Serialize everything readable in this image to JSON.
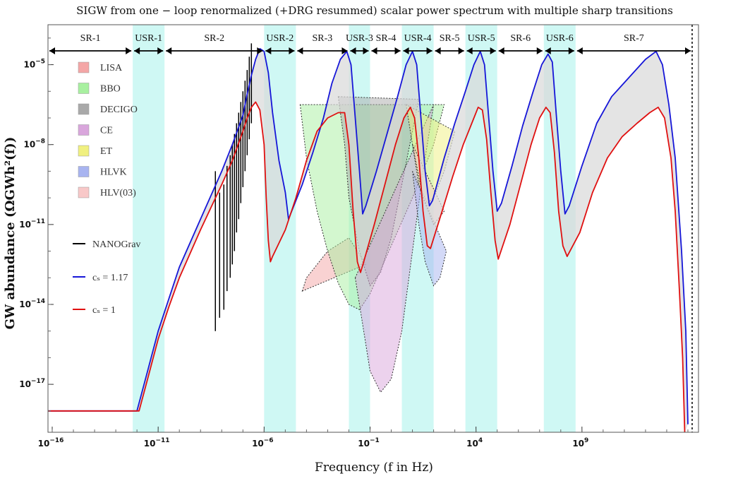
{
  "chart_data": {
    "type": "line",
    "title": "SIGW from one − loop renormalized (+DRG resummed) scalar power spectrum with multiple sharp transitions",
    "xlabel": "Frequency (f in Hz)",
    "ylabel": "GW abundance (ΩGWh²(f))",
    "xscale": "log10",
    "yscale": "log10",
    "xlim_log10": [
      -16.2,
      14.5
    ],
    "ylim_log10": [
      -18.8,
      -3.5
    ],
    "x_ticks": [
      {
        "log10": -16,
        "base": "10",
        "exp": "−16"
      },
      {
        "log10": -11,
        "base": "10",
        "exp": "−11"
      },
      {
        "log10": -6,
        "base": "10",
        "exp": "−6"
      },
      {
        "log10": -1,
        "base": "10",
        "exp": "−1"
      },
      {
        "log10": 4,
        "base": "10",
        "exp": "4"
      },
      {
        "log10": 9,
        "base": "10",
        "exp": "9"
      }
    ],
    "y_ticks": [
      {
        "log10": -5,
        "base": "10",
        "exp": "−5"
      },
      {
        "log10": -8,
        "base": "10",
        "exp": "−8"
      },
      {
        "log10": -11,
        "base": "10",
        "exp": "−11"
      },
      {
        "log10": -14,
        "base": "10",
        "exp": "−14"
      },
      {
        "log10": -17,
        "base": "10",
        "exp": "−17"
      }
    ],
    "regions": [
      {
        "label": "SR-1",
        "x0": -16.2,
        "x1": -12.2,
        "shaded": false
      },
      {
        "label": "USR-1",
        "x0": -12.2,
        "x1": -10.7,
        "shaded": true
      },
      {
        "label": "SR-2",
        "x0": -10.7,
        "x1": -6.0,
        "shaded": false
      },
      {
        "label": "USR-2",
        "x0": -6.0,
        "x1": -4.5,
        "shaded": true
      },
      {
        "label": "SR-3",
        "x0": -4.5,
        "x1": -2.0,
        "shaded": false
      },
      {
        "label": "USR-3",
        "x0": -2.0,
        "x1": -1.0,
        "shaded": true
      },
      {
        "label": "SR-4",
        "x0": -1.0,
        "x1": 0.5,
        "shaded": false
      },
      {
        "label": "USR-4",
        "x0": 0.5,
        "x1": 2.0,
        "shaded": true
      },
      {
        "label": "SR-5",
        "x0": 2.0,
        "x1": 3.5,
        "shaded": false
      },
      {
        "label": "USR-5",
        "x0": 3.5,
        "x1": 5.0,
        "shaded": true
      },
      {
        "label": "SR-6",
        "x0": 5.0,
        "x1": 7.2,
        "shaded": false
      },
      {
        "label": "USR-6",
        "x0": 7.2,
        "x1": 8.7,
        "shaded": true
      },
      {
        "label": "SR-7",
        "x0": 8.7,
        "x1": 14.2,
        "shaded": false
      }
    ],
    "detectors": [
      {
        "name": "LISA",
        "color": "#f4a6a6",
        "points": [
          [
            -4.2,
            -13.5
          ],
          [
            -4,
            -13
          ],
          [
            -3,
            -12
          ],
          [
            -2,
            -11.5
          ],
          [
            -1.2,
            -12.5
          ]
        ]
      },
      {
        "name": "BBO",
        "color": "#a8f0a0",
        "points": [
          [
            -4.3,
            -6.5
          ],
          [
            -4,
            -8.5
          ],
          [
            -3.5,
            -10.5
          ],
          [
            -3,
            -12
          ],
          [
            -2.5,
            -13.2
          ],
          [
            -2,
            -14
          ],
          [
            -1.5,
            -14.2
          ],
          [
            -1,
            -13.6
          ],
          [
            0,
            -11.8
          ],
          [
            1,
            -10
          ],
          [
            2,
            -8
          ],
          [
            2.5,
            -6.5
          ]
        ]
      },
      {
        "name": "DECIGO",
        "color": "#a9a9a9",
        "points": [
          [
            -2.5,
            -6.2
          ],
          [
            -2.2,
            -8
          ],
          [
            -2,
            -10
          ],
          [
            -1.5,
            -12
          ],
          [
            -1,
            -13.3
          ],
          [
            -0.5,
            -12.8
          ],
          [
            0,
            -11.5
          ],
          [
            0.5,
            -9.5
          ],
          [
            1,
            -7.5
          ],
          [
            1.3,
            -6.3
          ]
        ]
      },
      {
        "name": "CE",
        "color": "#d9a6dc",
        "points": [
          [
            -1.7,
            -13
          ],
          [
            -1,
            -16.5
          ],
          [
            -0.5,
            -17.3
          ],
          [
            0,
            -16.8
          ],
          [
            0.5,
            -15
          ],
          [
            1,
            -12
          ],
          [
            1.5,
            -9
          ],
          [
            2,
            -6.5
          ]
        ]
      },
      {
        "name": "ET",
        "color": "#f0f080",
        "points": [
          [
            0.7,
            -6.5
          ],
          [
            1,
            -8
          ],
          [
            1.3,
            -9.5
          ],
          [
            1.7,
            -10.2
          ],
          [
            2,
            -10
          ],
          [
            2.5,
            -9
          ],
          [
            3,
            -7.5
          ]
        ]
      },
      {
        "name": "HLVK",
        "color": "#a8b4f0",
        "points": [
          [
            1,
            -9
          ],
          [
            1.3,
            -11
          ],
          [
            1.6,
            -12.4
          ],
          [
            2,
            -13.3
          ],
          [
            2.3,
            -13
          ],
          [
            2.6,
            -12
          ]
        ]
      },
      {
        "name": "HLV(03)",
        "color": "#f8c8c8",
        "points": [
          [
            1,
            -8
          ],
          [
            1.5,
            -10
          ],
          [
            2,
            -11
          ],
          [
            2.5,
            -10.5
          ]
        ]
      }
    ],
    "series": [
      {
        "name": "NANOGrav",
        "color": "#000000",
        "type": "vertical_lines",
        "lines": [
          [
            -8.3,
            -9.0,
            -15.0
          ],
          [
            -8.1,
            -9.8,
            -14.5
          ],
          [
            -7.9,
            -9.5,
            -14.2
          ],
          [
            -7.75,
            -8.8,
            -13.5
          ],
          [
            -7.6,
            -8.4,
            -13.0
          ],
          [
            -7.5,
            -8.0,
            -12.5
          ],
          [
            -7.4,
            -7.6,
            -12.0
          ],
          [
            -7.3,
            -7.2,
            -11.3
          ],
          [
            -7.2,
            -6.8,
            -10.8
          ],
          [
            -7.1,
            -6.4,
            -10.2
          ],
          [
            -7.0,
            -6.0,
            -9.6
          ],
          [
            -6.9,
            -5.6,
            -9.0
          ],
          [
            -6.8,
            -5.2,
            -8.4
          ],
          [
            -6.7,
            -4.7,
            -7.8
          ],
          [
            -6.6,
            -4.2,
            -7.2
          ]
        ]
      },
      {
        "name": "cₛ = 1.17",
        "color": "#1616d8",
        "points": [
          [
            -16.2,
            -18.0
          ],
          [
            -12.2,
            -18.0
          ],
          [
            -12.0,
            -18.0
          ],
          [
            -11.5,
            -16.5
          ],
          [
            -11.0,
            -15.0
          ],
          [
            -10.5,
            -13.8
          ],
          [
            -10,
            -12.6
          ],
          [
            -9,
            -10.8
          ],
          [
            -8,
            -9.0
          ],
          [
            -7.5,
            -8.0
          ],
          [
            -7,
            -6.9
          ],
          [
            -6.8,
            -6.1
          ],
          [
            -6.6,
            -5.4
          ],
          [
            -6.4,
            -4.8
          ],
          [
            -6.2,
            -4.4
          ],
          [
            -6.0,
            -4.5
          ],
          [
            -5.8,
            -5.3
          ],
          [
            -5.6,
            -6.8
          ],
          [
            -5.3,
            -8.6
          ],
          [
            -5.0,
            -9.8
          ],
          [
            -4.85,
            -10.8
          ],
          [
            -4.7,
            -10.5
          ],
          [
            -4.2,
            -9.5
          ],
          [
            -3.7,
            -8.3
          ],
          [
            -3.2,
            -7.0
          ],
          [
            -2.8,
            -5.7
          ],
          [
            -2.4,
            -4.8
          ],
          [
            -2.1,
            -4.5
          ],
          [
            -1.9,
            -5.0
          ],
          [
            -1.7,
            -7.0
          ],
          [
            -1.5,
            -9.0
          ],
          [
            -1.35,
            -10.6
          ],
          [
            -1.2,
            -10.3
          ],
          [
            -0.7,
            -9.0
          ],
          [
            -0.2,
            -7.6
          ],
          [
            0.3,
            -6.2
          ],
          [
            0.7,
            -5.0
          ],
          [
            1.0,
            -4.5
          ],
          [
            1.2,
            -5.0
          ],
          [
            1.4,
            -7.0
          ],
          [
            1.6,
            -9.0
          ],
          [
            1.8,
            -10.3
          ],
          [
            1.95,
            -10.1
          ],
          [
            2.5,
            -8.5
          ],
          [
            3.0,
            -7.2
          ],
          [
            3.5,
            -6.0
          ],
          [
            3.9,
            -5.0
          ],
          [
            4.2,
            -4.5
          ],
          [
            4.4,
            -5.0
          ],
          [
            4.6,
            -7.0
          ],
          [
            4.8,
            -9.0
          ],
          [
            5.0,
            -10.5
          ],
          [
            5.2,
            -10.2
          ],
          [
            5.7,
            -8.8
          ],
          [
            6.2,
            -7.3
          ],
          [
            6.7,
            -6.0
          ],
          [
            7.1,
            -5.0
          ],
          [
            7.4,
            -4.6
          ],
          [
            7.6,
            -4.9
          ],
          [
            7.8,
            -7.0
          ],
          [
            8.0,
            -9.0
          ],
          [
            8.2,
            -10.6
          ],
          [
            8.4,
            -10.3
          ],
          [
            9.0,
            -8.8
          ],
          [
            9.7,
            -7.2
          ],
          [
            10.4,
            -6.2
          ],
          [
            11.2,
            -5.5
          ],
          [
            12.0,
            -4.8
          ],
          [
            12.5,
            -4.5
          ],
          [
            12.8,
            -5.0
          ],
          [
            13.1,
            -6.5
          ],
          [
            13.4,
            -8.5
          ],
          [
            13.7,
            -12.0
          ],
          [
            13.9,
            -15.0
          ],
          [
            14.0,
            -18.5
          ]
        ]
      },
      {
        "name": "cₛ = 1",
        "color": "#e01010",
        "points": [
          [
            -16.2,
            -18.0
          ],
          [
            -12.2,
            -18.0
          ],
          [
            -11.9,
            -18.0
          ],
          [
            -11.5,
            -16.8
          ],
          [
            -11.0,
            -15.3
          ],
          [
            -10.5,
            -14.1
          ],
          [
            -10,
            -13.0
          ],
          [
            -9,
            -11.2
          ],
          [
            -8,
            -9.5
          ],
          [
            -7.5,
            -8.6
          ],
          [
            -7,
            -7.5
          ],
          [
            -6.8,
            -7.0
          ],
          [
            -6.6,
            -6.6
          ],
          [
            -6.4,
            -6.4
          ],
          [
            -6.2,
            -6.7
          ],
          [
            -6.0,
            -8.0
          ],
          [
            -5.9,
            -10.0
          ],
          [
            -5.8,
            -11.6
          ],
          [
            -5.7,
            -12.4
          ],
          [
            -5.6,
            -12.2
          ],
          [
            -5.0,
            -11.2
          ],
          [
            -4.5,
            -10.0
          ],
          [
            -4.0,
            -8.6
          ],
          [
            -3.5,
            -7.5
          ],
          [
            -3.0,
            -7.0
          ],
          [
            -2.5,
            -6.8
          ],
          [
            -2.2,
            -6.8
          ],
          [
            -2.0,
            -8.0
          ],
          [
            -1.8,
            -10.5
          ],
          [
            -1.6,
            -12.4
          ],
          [
            -1.45,
            -12.8
          ],
          [
            -1.3,
            -12.4
          ],
          [
            -0.8,
            -11.0
          ],
          [
            -0.3,
            -9.5
          ],
          [
            0.2,
            -8.0
          ],
          [
            0.6,
            -7.0
          ],
          [
            0.9,
            -6.6
          ],
          [
            1.1,
            -7.0
          ],
          [
            1.3,
            -8.5
          ],
          [
            1.5,
            -10.5
          ],
          [
            1.7,
            -11.8
          ],
          [
            1.85,
            -11.9
          ],
          [
            2.4,
            -10.5
          ],
          [
            2.9,
            -9.2
          ],
          [
            3.4,
            -8.0
          ],
          [
            3.8,
            -7.2
          ],
          [
            4.1,
            -6.6
          ],
          [
            4.3,
            -6.7
          ],
          [
            4.5,
            -7.8
          ],
          [
            4.7,
            -9.8
          ],
          [
            4.9,
            -11.6
          ],
          [
            5.05,
            -12.3
          ],
          [
            5.6,
            -11.0
          ],
          [
            6.1,
            -9.5
          ],
          [
            6.6,
            -8.0
          ],
          [
            7.0,
            -7.0
          ],
          [
            7.3,
            -6.6
          ],
          [
            7.5,
            -6.8
          ],
          [
            7.7,
            -8.3
          ],
          [
            7.9,
            -10.5
          ],
          [
            8.1,
            -11.8
          ],
          [
            8.3,
            -12.2
          ],
          [
            8.9,
            -11.3
          ],
          [
            9.5,
            -9.8
          ],
          [
            10.2,
            -8.5
          ],
          [
            10.9,
            -7.7
          ],
          [
            11.6,
            -7.2
          ],
          [
            12.2,
            -6.8
          ],
          [
            12.6,
            -6.6
          ],
          [
            12.9,
            -7.0
          ],
          [
            13.2,
            -8.5
          ],
          [
            13.4,
            -10.5
          ],
          [
            13.6,
            -13.5
          ],
          [
            13.75,
            -16.0
          ],
          [
            13.85,
            -18.8
          ]
        ]
      }
    ],
    "legend": [
      {
        "label": "LISA",
        "kind": "swatch",
        "color": "#f4a6a6"
      },
      {
        "label": "BBO",
        "kind": "swatch",
        "color": "#a8f0a0"
      },
      {
        "label": "DECIGO",
        "kind": "swatch",
        "color": "#a9a9a9"
      },
      {
        "label": "CE",
        "kind": "swatch",
        "color": "#d9a6dc"
      },
      {
        "label": "ET",
        "kind": "swatch",
        "color": "#f0f080"
      },
      {
        "label": "HLVK",
        "kind": "swatch",
        "color": "#a8b4f0"
      },
      {
        "label": "HLV(03)",
        "kind": "swatch",
        "color": "#f8c8c8"
      },
      {
        "label": "NANOGrav",
        "kind": "line",
        "color": "#000000"
      },
      {
        "label": "cₛ = 1.17",
        "kind": "line",
        "color": "#1616d8"
      },
      {
        "label": "cₛ = 1",
        "kind": "line",
        "color": "#e01010"
      }
    ],
    "end_marker_log10": 14.2,
    "band_color": "#cff8f4",
    "fill_between_color": "#d8d8d8"
  }
}
